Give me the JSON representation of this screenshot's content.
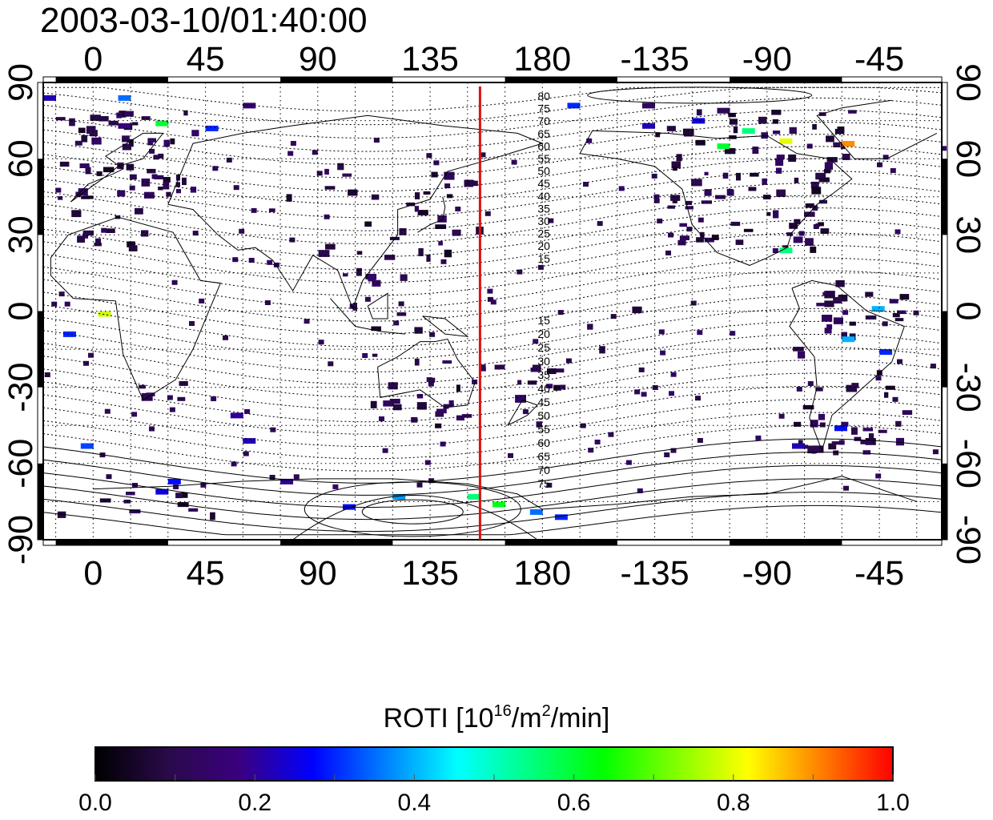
{
  "header": {
    "timestamp": "2003-03-10/01:40:00"
  },
  "map": {
    "projection": "equirectangular, centered at 160E",
    "lon_ticks": [
      {
        "lon": 0,
        "label": "0"
      },
      {
        "lon": 45,
        "label": "45"
      },
      {
        "lon": 90,
        "label": "90"
      },
      {
        "lon": 135,
        "label": "135"
      },
      {
        "lon": 180,
        "label": "180"
      },
      {
        "lon": -135,
        "label": "-135"
      },
      {
        "lon": -90,
        "label": "-90"
      },
      {
        "lon": -45,
        "label": "-45"
      }
    ],
    "lat_ticks": [
      {
        "lat": 90,
        "label": "90"
      },
      {
        "lat": 60,
        "label": "60"
      },
      {
        "lat": 30,
        "label": "30"
      },
      {
        "lat": 0,
        "label": "0"
      },
      {
        "lat": -30,
        "label": "-30"
      },
      {
        "lat": -60,
        "label": "-60"
      },
      {
        "lat": -90,
        "label": "-90"
      }
    ],
    "terminator_longitude": 155,
    "terminator_color": "#dd1111",
    "contour_labels_north": [
      "80",
      "75",
      "70",
      "65",
      "60",
      "55",
      "50",
      "45",
      "40",
      "35",
      "30",
      "25",
      "20",
      "15"
    ],
    "contour_labels_south": [
      "15",
      "20",
      "25",
      "30",
      "35",
      "40",
      "45",
      "50",
      "55",
      "60",
      "65",
      "70",
      "75"
    ],
    "patches": [
      {
        "lon": -20,
        "lat": 85,
        "v": 0.22
      },
      {
        "lon": 10,
        "lat": 85,
        "v": 0.35
      },
      {
        "lon": 60,
        "lat": 82,
        "v": 0.15
      },
      {
        "lon": -140,
        "lat": 82,
        "v": 0.12
      },
      {
        "lon": -110,
        "lat": 80,
        "v": 0.12
      },
      {
        "lon": -170,
        "lat": 82,
        "v": 0.3
      },
      {
        "lon": 25,
        "lat": 75,
        "v": 0.6
      },
      {
        "lon": 45,
        "lat": 73,
        "v": 0.3
      },
      {
        "lon": 10,
        "lat": 74,
        "v": 0.18
      },
      {
        "lon": -100,
        "lat": 72,
        "v": 0.55
      },
      {
        "lon": -85,
        "lat": 68,
        "v": 0.8
      },
      {
        "lon": -110,
        "lat": 66,
        "v": 0.6
      },
      {
        "lon": -60,
        "lat": 67,
        "v": 0.9
      },
      {
        "lon": -120,
        "lat": 76,
        "v": 0.25
      },
      {
        "lon": -140,
        "lat": 74,
        "v": 0.22
      },
      {
        "lon": 2,
        "lat": 0,
        "v": 0.78
      },
      {
        "lon": -12,
        "lat": -8,
        "v": 0.3
      },
      {
        "lon": -48,
        "lat": 2,
        "v": 0.4
      },
      {
        "lon": -63,
        "lat": -45,
        "v": 0.28
      },
      {
        "lon": 150,
        "lat": -72,
        "v": 0.55
      },
      {
        "lon": 160,
        "lat": -75,
        "v": 0.62
      },
      {
        "lon": 175,
        "lat": -78,
        "v": 0.35
      },
      {
        "lon": 185,
        "lat": -80,
        "v": 0.3
      },
      {
        "lon": 120,
        "lat": -72,
        "v": 0.38
      },
      {
        "lon": 100,
        "lat": -76,
        "v": 0.28
      },
      {
        "lon": 30,
        "lat": -66,
        "v": 0.28
      },
      {
        "lon": -5,
        "lat": -52,
        "v": 0.32
      },
      {
        "lon": 25,
        "lat": -70,
        "v": 0.25
      },
      {
        "lon": 55,
        "lat": -40,
        "v": 0.2
      },
      {
        "lon": 60,
        "lat": -50,
        "v": 0.22
      },
      {
        "lon": -80,
        "lat": -52,
        "v": 0.22
      },
      {
        "lon": -45,
        "lat": -15,
        "v": 0.3
      },
      {
        "lon": -60,
        "lat": -10,
        "v": 0.4
      },
      {
        "lon": -85,
        "lat": 25,
        "v": 0.55
      },
      {
        "lon": 75,
        "lat": -66,
        "v": 0.2
      }
    ]
  },
  "colorbar": {
    "title_prefix": "ROTI  [10",
    "title_sup1": "16",
    "title_mid": "/m",
    "title_sup2": "2",
    "title_suffix": "/min]",
    "range": [
      0.0,
      1.0
    ],
    "tick_labels": [
      {
        "value": 0.0,
        "label": "0.0"
      },
      {
        "value": 0.2,
        "label": "0.2"
      },
      {
        "value": 0.4,
        "label": "0.4"
      },
      {
        "value": 0.6,
        "label": "0.6"
      },
      {
        "value": 0.8,
        "label": "0.8"
      },
      {
        "value": 1.0,
        "label": "1.0"
      }
    ],
    "colors": [
      "#000000",
      "#2a0a4a",
      "#3a0080",
      "#0000ff",
      "#0080ff",
      "#00ffff",
      "#00ff80",
      "#00ff00",
      "#80ff00",
      "#ffff00",
      "#ff8000",
      "#ff0000"
    ]
  }
}
